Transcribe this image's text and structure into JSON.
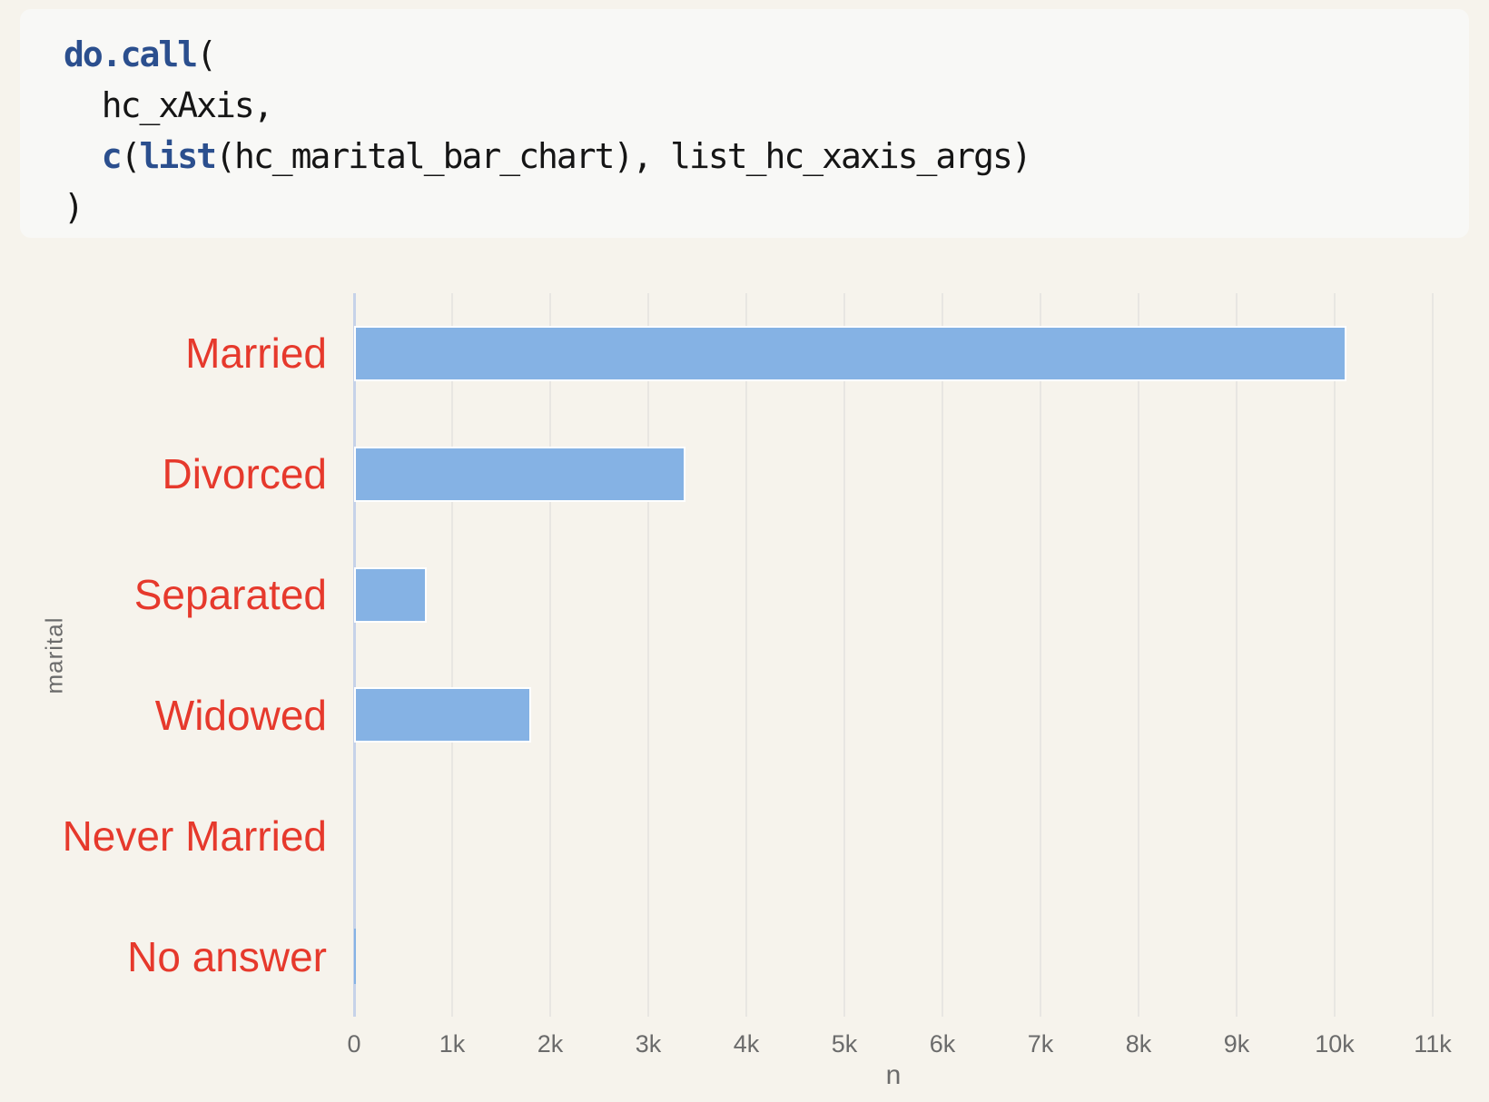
{
  "page": {
    "background": "#f6f3ec"
  },
  "code_block": {
    "background": "#f8f8f6",
    "text_color": "#151515",
    "keyword_color": "#2b4f8e",
    "lines": [
      {
        "segments": [
          {
            "text": "do.call",
            "style": "keyword"
          },
          {
            "text": "(",
            "style": "plain"
          }
        ]
      },
      {
        "segments": [
          {
            "text": "  hc_xAxis,",
            "style": "plain"
          }
        ]
      },
      {
        "segments": [
          {
            "text": "  ",
            "style": "plain"
          },
          {
            "text": "c",
            "style": "keyword"
          },
          {
            "text": "(",
            "style": "plain"
          },
          {
            "text": "list",
            "style": "keyword"
          },
          {
            "text": "(hc_marital_bar_chart), list_hc_xaxis_args)",
            "style": "plain"
          }
        ]
      },
      {
        "segments": [
          {
            "text": ")",
            "style": "plain"
          }
        ]
      }
    ]
  },
  "chart_data": {
    "type": "bar",
    "orientation": "horizontal",
    "title": "",
    "categories": [
      "Married",
      "Divorced",
      "Separated",
      "Widowed",
      "Never Married",
      "No answer"
    ],
    "values": [
      10117,
      3383,
      743,
      1807,
      null,
      17
    ],
    "xlabel": "n",
    "ylabel": "marital",
    "xlim": [
      0,
      11260
    ],
    "x_tick_values": [
      0,
      1000,
      2000,
      3000,
      4000,
      5000,
      6000,
      7000,
      8000,
      9000,
      10000,
      11000
    ],
    "x_tick_labels": [
      "0",
      "1k",
      "2k",
      "3k",
      "4k",
      "5k",
      "6k",
      "7k",
      "8k",
      "9k",
      "10k",
      "11k"
    ],
    "grid": true,
    "legend": false,
    "colors": {
      "bar_fill": "#85b2e4",
      "bar_border": "#ffffff",
      "category_label": "#e6392c",
      "axis_text": "#6b6b6b",
      "axis_line": "#c6d2e9",
      "gridline": "#e8e6e2",
      "plot_background": "#f6f3ec"
    }
  }
}
